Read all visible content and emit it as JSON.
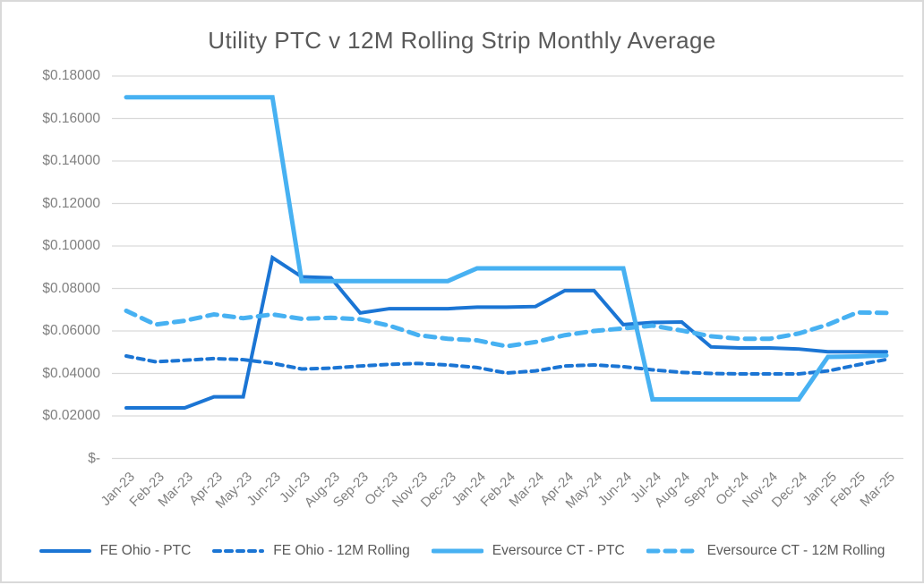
{
  "chart_data": {
    "type": "line",
    "title": "Utility PTC v 12M Rolling Strip Monthly Average",
    "categories": [
      "Jan-23",
      "Feb-23",
      "Mar-23",
      "Apr-23",
      "May-23",
      "Jun-23",
      "Jul-23",
      "Aug-23",
      "Sep-23",
      "Oct-23",
      "Nov-23",
      "Dec-23",
      "Jan-24",
      "Feb-24",
      "Mar-24",
      "Apr-24",
      "May-24",
      "Jun-24",
      "Jul-24",
      "Aug-24",
      "Sep-24",
      "Oct-24",
      "Nov-24",
      "Dec-24",
      "Jan-25",
      "Feb-25",
      "Mar-25"
    ],
    "series": [
      {
        "name": "FE Ohio - PTC",
        "color": "#1b75d4",
        "style": "solid",
        "width": 4,
        "values": [
          0.0238,
          0.0238,
          0.0238,
          0.029,
          0.029,
          0.0945,
          0.0855,
          0.085,
          0.0685,
          0.0705,
          0.0705,
          0.0705,
          0.0712,
          0.0712,
          0.0715,
          0.079,
          0.079,
          0.063,
          0.064,
          0.0642,
          0.0525,
          0.052,
          0.052,
          0.0515,
          0.0502,
          0.0502,
          0.0502
        ]
      },
      {
        "name": "FE Ohio - 12M Rolling",
        "color": "#1b75d4",
        "style": "dashed",
        "width": 4,
        "values": [
          0.0482,
          0.0455,
          0.0462,
          0.047,
          0.0465,
          0.0448,
          0.0421,
          0.0425,
          0.0435,
          0.0443,
          0.0447,
          0.044,
          0.0428,
          0.0402,
          0.0412,
          0.0435,
          0.044,
          0.0432,
          0.0417,
          0.0405,
          0.04,
          0.0398,
          0.0398,
          0.0398,
          0.0412,
          0.044,
          0.0466
        ]
      },
      {
        "name": "Eversource CT - PTC",
        "color": "#47b1f2",
        "style": "solid",
        "width": 5,
        "values": [
          0.17,
          0.17,
          0.17,
          0.17,
          0.17,
          0.17,
          0.0835,
          0.0835,
          0.0835,
          0.0835,
          0.0835,
          0.0835,
          0.0895,
          0.0895,
          0.0895,
          0.0895,
          0.0895,
          0.0895,
          0.0278,
          0.0278,
          0.0278,
          0.0278,
          0.0278,
          0.0278,
          0.0478,
          0.048,
          0.0485
        ]
      },
      {
        "name": "Eversource CT - 12M Rolling",
        "color": "#47b1f2",
        "style": "dashed",
        "width": 5,
        "values": [
          0.0695,
          0.063,
          0.0648,
          0.0678,
          0.066,
          0.0678,
          0.0657,
          0.0662,
          0.0655,
          0.0625,
          0.058,
          0.0563,
          0.0556,
          0.0528,
          0.0548,
          0.058,
          0.06,
          0.0612,
          0.0625,
          0.0602,
          0.0575,
          0.0563,
          0.0563,
          0.0588,
          0.063,
          0.0687,
          0.0685
        ]
      }
    ],
    "y_axis": {
      "ticks": [
        {
          "label": "$0.18000",
          "value": 0.18
        },
        {
          "label": "$0.16000",
          "value": 0.16
        },
        {
          "label": "$0.14000",
          "value": 0.14
        },
        {
          "label": "$0.12000",
          "value": 0.12
        },
        {
          "label": "$0.10000",
          "value": 0.1
        },
        {
          "label": "$0.08000",
          "value": 0.08
        },
        {
          "label": "$0.06000",
          "value": 0.06
        },
        {
          "label": "$0.04000",
          "value": 0.04
        },
        {
          "label": "$0.02000",
          "value": 0.02
        },
        {
          "label": "$-",
          "value": 0.0
        }
      ],
      "ylim": [
        0,
        0.18
      ]
    },
    "xlabel": "",
    "ylabel": "",
    "grid": "horizontal",
    "legend_position": "bottom"
  },
  "styles": {
    "title_color": "#595959",
    "axis_label_color": "#808080",
    "legend_text_color": "#595959",
    "grid_color": "#d9d9d9",
    "border_color": "#d9d9d9",
    "background": "#ffffff",
    "dark_blue": "#1b75d4",
    "light_blue": "#47b1f2"
  }
}
